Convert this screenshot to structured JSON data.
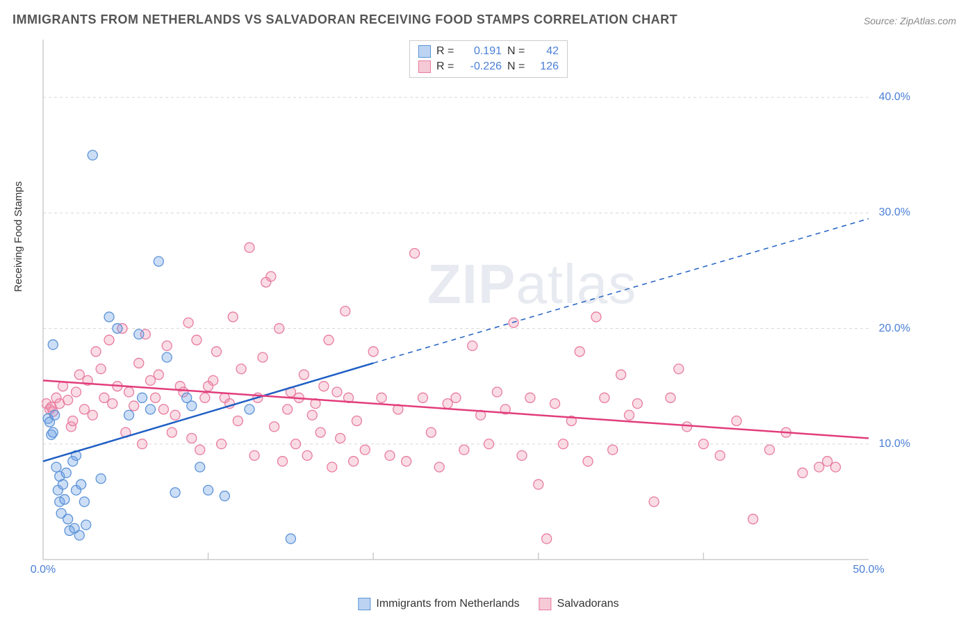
{
  "title": "IMMIGRANTS FROM NETHERLANDS VS SALVADORAN RECEIVING FOOD STAMPS CORRELATION CHART",
  "source": "Source: ZipAtlas.com",
  "ylabel": "Receiving Food Stamps",
  "watermark_bold": "ZIP",
  "watermark_rest": "atlas",
  "chart": {
    "type": "scatter",
    "xlim": [
      0,
      50
    ],
    "ylim": [
      0,
      45
    ],
    "xtick_labels": {
      "0": "0.0%",
      "50": "50.0%"
    },
    "xtick_marks": [
      10,
      20,
      30,
      40
    ],
    "ytick_labels": {
      "10": "10.0%",
      "20": "20.0%",
      "30": "30.0%",
      "40": "40.0%"
    },
    "grid_y": [
      10,
      20,
      30,
      40
    ],
    "background_color": "#ffffff",
    "grid_color": "#d8d8d8",
    "axis_color": "#cccccc",
    "series": [
      {
        "name": "Immigrants from Netherlands",
        "color_fill": "rgba(110,160,230,0.35)",
        "color_stroke": "#5c93d8",
        "swatch_fill": "#bcd4f2",
        "swatch_stroke": "#5c93d8",
        "r_label": "R =",
        "r_value": "0.191",
        "n_label": "N =",
        "n_value": "42",
        "marker_radius": 7,
        "trend": {
          "color": "#1f5fc4",
          "width": 2.5,
          "x1": 0,
          "y1": 8.5,
          "solid_x2": 20,
          "solid_y2": 17,
          "dash_x2": 50,
          "dash_y2": 29.5
        },
        "points": [
          [
            0.3,
            12.2
          ],
          [
            0.4,
            11.9
          ],
          [
            0.5,
            10.8
          ],
          [
            0.6,
            18.6
          ],
          [
            0.6,
            11.0
          ],
          [
            0.7,
            12.5
          ],
          [
            0.8,
            8.0
          ],
          [
            0.9,
            6.0
          ],
          [
            1.0,
            7.2
          ],
          [
            1.0,
            5.0
          ],
          [
            1.1,
            4.0
          ],
          [
            1.2,
            6.5
          ],
          [
            1.3,
            5.2
          ],
          [
            1.4,
            7.5
          ],
          [
            1.5,
            3.5
          ],
          [
            1.6,
            2.5
          ],
          [
            1.8,
            8.5
          ],
          [
            1.9,
            2.7
          ],
          [
            2.0,
            6.0
          ],
          [
            2.0,
            9.0
          ],
          [
            2.2,
            2.1
          ],
          [
            2.3,
            6.5
          ],
          [
            2.5,
            5.0
          ],
          [
            2.6,
            3.0
          ],
          [
            3.0,
            35.0
          ],
          [
            3.5,
            7.0
          ],
          [
            4.0,
            21.0
          ],
          [
            4.5,
            20.0
          ],
          [
            5.2,
            12.5
          ],
          [
            5.8,
            19.5
          ],
          [
            6.0,
            14.0
          ],
          [
            6.5,
            13.0
          ],
          [
            7.0,
            25.8
          ],
          [
            7.5,
            17.5
          ],
          [
            8.0,
            5.8
          ],
          [
            8.7,
            14.0
          ],
          [
            9.0,
            13.3
          ],
          [
            9.5,
            8.0
          ],
          [
            10.0,
            6.0
          ],
          [
            11.0,
            5.5
          ],
          [
            12.5,
            13.0
          ],
          [
            15.0,
            1.8
          ]
        ]
      },
      {
        "name": "Salvadorans",
        "color_fill": "rgba(240,140,170,0.30)",
        "color_stroke": "#e77ba0",
        "swatch_fill": "#f6c9d7",
        "swatch_stroke": "#e77ba0",
        "r_label": "R =",
        "r_value": "-0.226",
        "n_label": "N =",
        "n_value": "126",
        "marker_radius": 7,
        "trend": {
          "color": "#e23d7b",
          "width": 2.5,
          "x1": 0,
          "y1": 15.5,
          "solid_x2": 50,
          "solid_y2": 10.5,
          "dash_x2": null,
          "dash_y2": null
        },
        "points": [
          [
            0.2,
            13.5
          ],
          [
            0.4,
            13.0
          ],
          [
            0.6,
            12.8
          ],
          [
            0.8,
            14.0
          ],
          [
            0.5,
            13.2
          ],
          [
            1.0,
            13.5
          ],
          [
            1.2,
            15.0
          ],
          [
            1.5,
            13.8
          ],
          [
            1.7,
            11.5
          ],
          [
            1.8,
            12.0
          ],
          [
            2.0,
            14.5
          ],
          [
            2.2,
            16.0
          ],
          [
            2.5,
            13.0
          ],
          [
            2.7,
            15.5
          ],
          [
            3.0,
            12.5
          ],
          [
            3.2,
            18.0
          ],
          [
            3.5,
            16.5
          ],
          [
            3.7,
            14.0
          ],
          [
            4.0,
            19.0
          ],
          [
            4.2,
            13.5
          ],
          [
            4.5,
            15.0
          ],
          [
            4.8,
            20.0
          ],
          [
            5.0,
            11.0
          ],
          [
            5.2,
            14.5
          ],
          [
            5.5,
            13.3
          ],
          [
            5.8,
            17.0
          ],
          [
            6.0,
            10.0
          ],
          [
            6.2,
            19.5
          ],
          [
            6.5,
            15.5
          ],
          [
            6.8,
            14.0
          ],
          [
            7.0,
            16.0
          ],
          [
            7.3,
            13.0
          ],
          [
            7.5,
            18.5
          ],
          [
            7.8,
            11.0
          ],
          [
            8.0,
            12.5
          ],
          [
            8.3,
            15.0
          ],
          [
            8.5,
            14.5
          ],
          [
            8.8,
            20.5
          ],
          [
            9.0,
            10.5
          ],
          [
            9.3,
            19.0
          ],
          [
            9.5,
            9.5
          ],
          [
            9.8,
            14.0
          ],
          [
            10.0,
            15.0
          ],
          [
            10.3,
            15.5
          ],
          [
            10.5,
            18.0
          ],
          [
            10.8,
            10.0
          ],
          [
            11.0,
            14.0
          ],
          [
            11.3,
            13.5
          ],
          [
            11.5,
            21.0
          ],
          [
            11.8,
            12.0
          ],
          [
            12.0,
            16.5
          ],
          [
            12.5,
            27.0
          ],
          [
            12.8,
            9.0
          ],
          [
            13.0,
            14.0
          ],
          [
            13.3,
            17.5
          ],
          [
            13.5,
            24.0
          ],
          [
            13.8,
            24.5
          ],
          [
            14.0,
            11.5
          ],
          [
            14.3,
            20.0
          ],
          [
            14.5,
            8.5
          ],
          [
            14.8,
            13.0
          ],
          [
            15.0,
            14.5
          ],
          [
            15.3,
            10.0
          ],
          [
            15.5,
            14.0
          ],
          [
            15.8,
            16.0
          ],
          [
            16.0,
            9.0
          ],
          [
            16.3,
            12.5
          ],
          [
            16.5,
            13.5
          ],
          [
            16.8,
            11.0
          ],
          [
            17.0,
            15.0
          ],
          [
            17.3,
            19.0
          ],
          [
            17.5,
            8.0
          ],
          [
            17.8,
            14.5
          ],
          [
            18.0,
            10.5
          ],
          [
            18.3,
            21.5
          ],
          [
            18.5,
            14.0
          ],
          [
            18.8,
            8.5
          ],
          [
            19.0,
            12.0
          ],
          [
            19.5,
            9.5
          ],
          [
            20.0,
            18.0
          ],
          [
            20.5,
            14.0
          ],
          [
            21.0,
            9.0
          ],
          [
            21.5,
            13.0
          ],
          [
            22.0,
            8.5
          ],
          [
            22.5,
            26.5
          ],
          [
            23.0,
            14.0
          ],
          [
            23.5,
            11.0
          ],
          [
            24.0,
            8.0
          ],
          [
            24.5,
            13.5
          ],
          [
            25.0,
            14.0
          ],
          [
            25.5,
            9.5
          ],
          [
            26.0,
            18.5
          ],
          [
            26.5,
            12.5
          ],
          [
            27.0,
            10.0
          ],
          [
            27.5,
            14.5
          ],
          [
            28.0,
            13.0
          ],
          [
            28.5,
            20.5
          ],
          [
            29.0,
            9.0
          ],
          [
            29.5,
            14.0
          ],
          [
            30.0,
            6.5
          ],
          [
            30.5,
            1.8
          ],
          [
            31.0,
            13.5
          ],
          [
            31.5,
            10.0
          ],
          [
            32.0,
            12.0
          ],
          [
            32.5,
            18.0
          ],
          [
            33.0,
            8.5
          ],
          [
            33.5,
            21.0
          ],
          [
            34.0,
            14.0
          ],
          [
            34.5,
            9.5
          ],
          [
            35.0,
            16.0
          ],
          [
            35.5,
            12.5
          ],
          [
            36.0,
            13.5
          ],
          [
            37.0,
            5.0
          ],
          [
            38.0,
            14.0
          ],
          [
            38.5,
            16.5
          ],
          [
            39.0,
            11.5
          ],
          [
            40.0,
            10.0
          ],
          [
            41.0,
            9.0
          ],
          [
            42.0,
            12.0
          ],
          [
            43.0,
            3.5
          ],
          [
            44.0,
            9.5
          ],
          [
            45.0,
            11.0
          ],
          [
            46.0,
            7.5
          ],
          [
            47.0,
            8.0
          ],
          [
            47.5,
            8.5
          ],
          [
            48.0,
            8.0
          ]
        ]
      }
    ]
  },
  "legend_bottom": [
    {
      "swatch_fill": "#bcd4f2",
      "swatch_stroke": "#5c93d8",
      "label": "Immigrants from Netherlands"
    },
    {
      "swatch_fill": "#f6c9d7",
      "swatch_stroke": "#e77ba0",
      "label": "Salvadorans"
    }
  ]
}
